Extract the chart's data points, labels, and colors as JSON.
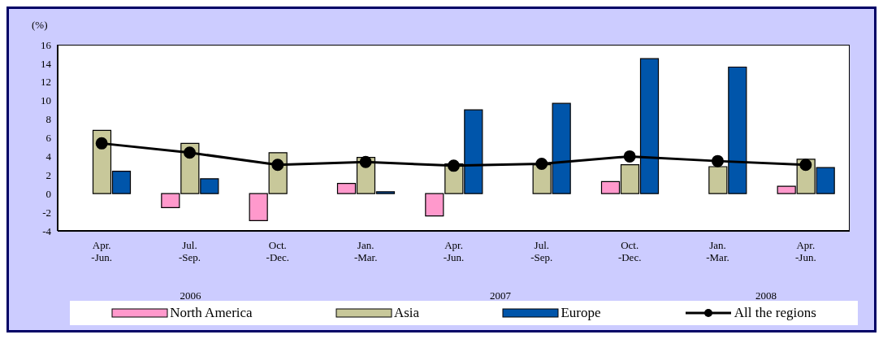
{
  "chart_data": {
    "type": "bar",
    "ylabel": "(%)",
    "categories": [
      "Apr.\n-Jun.",
      "Jul.\n-Sep.",
      "Oct.\n-Dec.",
      "Jan.\n-Mar.",
      "Apr.\n-Jun.",
      "Jul.\n-Sep.",
      "Oct.\n-Dec.",
      "Jan.\n-Mar.",
      "Apr.\n-Jun."
    ],
    "series": [
      {
        "name": "North America",
        "color": "#ff99cc",
        "values": [
          0.0,
          -1.5,
          -2.9,
          1.1,
          -2.4,
          0.0,
          1.3,
          0.0,
          0.8
        ]
      },
      {
        "name": "Asia",
        "color": "#c8c89a",
        "values": [
          6.8,
          5.4,
          4.4,
          3.9,
          3.2,
          3.1,
          3.1,
          2.9,
          3.7
        ]
      },
      {
        "name": "Europe",
        "color": "#0055aa",
        "values": [
          2.4,
          1.6,
          0.0,
          0.2,
          9.0,
          9.7,
          14.5,
          13.6,
          2.8
        ]
      },
      {
        "name": "All the regions",
        "type": "line",
        "color": "#000000",
        "marker": "circle",
        "values": [
          5.4,
          4.4,
          3.1,
          3.4,
          3.0,
          3.2,
          4.0,
          3.5,
          3.1
        ]
      }
    ],
    "annotations": [
      "2006",
      "2007",
      "2008"
    ],
    "ylim": [
      -4,
      16
    ],
    "yticks": [
      -4,
      -2,
      0,
      2,
      4,
      6,
      8,
      10,
      12,
      14,
      16
    ],
    "grid": false,
    "legend": "bottom"
  }
}
